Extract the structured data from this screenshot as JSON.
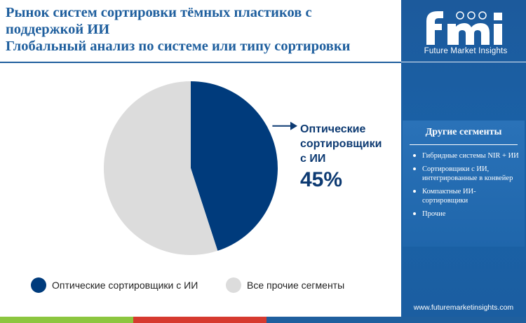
{
  "header": {
    "title_lines": [
      "Рынок систем сортировки тёмных пластиков с",
      "поддержкой ИИ",
      "Глобальный анализ по системе или типу сортировки"
    ]
  },
  "brand": {
    "logo_text": "fmi",
    "tagline": "Future Market Insights",
    "website": "www.futuremarketinsights.com"
  },
  "sidebar": {
    "segments_title": "Другие сегменты",
    "segments": [
      "Гибридные системы NIR + ИИ",
      "Сортировщики с ИИ, интегрированные в конвейер",
      "Компактные ИИ-сортировщики",
      "Прочие"
    ]
  },
  "callout": {
    "label_lines": [
      "Оптические",
      "сортировщики",
      "с ИИ"
    ],
    "value": "45%"
  },
  "chart_data": {
    "type": "pie",
    "title": "",
    "slices": [
      {
        "name": "Оптические сортировщики с ИИ",
        "value": 45,
        "color": "#003b7c"
      },
      {
        "name": "Все прочие сегменты",
        "value": 55,
        "color": "#dcdcdc"
      }
    ],
    "legend_position": "bottom-left",
    "start_angle": "top",
    "direction": "clockwise"
  },
  "colors": {
    "accent": "#1f5f9e",
    "sidebar": "#1b5ea1",
    "primary_slice": "#003b7c",
    "secondary_slice": "#dcdcdc",
    "bar_green": "#8cc63f",
    "bar_red": "#d63a2f",
    "bar_blue": "#1f5f9e"
  }
}
